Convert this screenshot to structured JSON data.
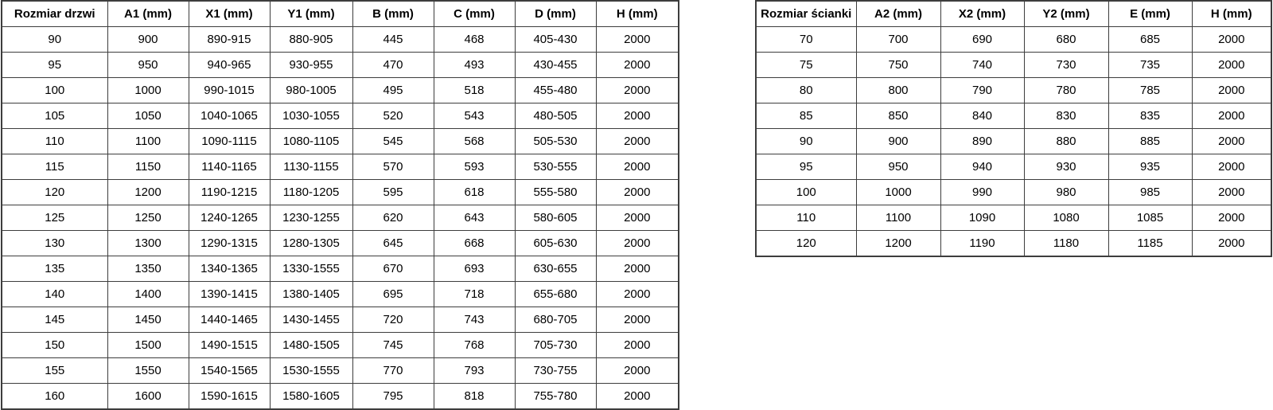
{
  "door_table": {
    "title": "Rozmiar drzwi table",
    "headers": [
      "Rozmiar drzwi",
      "A1 (mm)",
      "X1 (mm)",
      "Y1 (mm)",
      "B (mm)",
      "C (mm)",
      "D (mm)",
      "H (mm)"
    ],
    "rows": [
      [
        "90",
        "900",
        "890-915",
        "880-905",
        "445",
        "468",
        "405-430",
        "2000"
      ],
      [
        "95",
        "950",
        "940-965",
        "930-955",
        "470",
        "493",
        "430-455",
        "2000"
      ],
      [
        "100",
        "1000",
        "990-1015",
        "980-1005",
        "495",
        "518",
        "455-480",
        "2000"
      ],
      [
        "105",
        "1050",
        "1040-1065",
        "1030-1055",
        "520",
        "543",
        "480-505",
        "2000"
      ],
      [
        "110",
        "1100",
        "1090-1115",
        "1080-1105",
        "545",
        "568",
        "505-530",
        "2000"
      ],
      [
        "115",
        "1150",
        "1140-1165",
        "1130-1155",
        "570",
        "593",
        "530-555",
        "2000"
      ],
      [
        "120",
        "1200",
        "1190-1215",
        "1180-1205",
        "595",
        "618",
        "555-580",
        "2000"
      ],
      [
        "125",
        "1250",
        "1240-1265",
        "1230-1255",
        "620",
        "643",
        "580-605",
        "2000"
      ],
      [
        "130",
        "1300",
        "1290-1315",
        "1280-1305",
        "645",
        "668",
        "605-630",
        "2000"
      ],
      [
        "135",
        "1350",
        "1340-1365",
        "1330-1555",
        "670",
        "693",
        "630-655",
        "2000"
      ],
      [
        "140",
        "1400",
        "1390-1415",
        "1380-1405",
        "695",
        "718",
        "655-680",
        "2000"
      ],
      [
        "145",
        "1450",
        "1440-1465",
        "1430-1455",
        "720",
        "743",
        "680-705",
        "2000"
      ],
      [
        "150",
        "1500",
        "1490-1515",
        "1480-1505",
        "745",
        "768",
        "705-730",
        "2000"
      ],
      [
        "155",
        "1550",
        "1540-1565",
        "1530-1555",
        "770",
        "793",
        "730-755",
        "2000"
      ],
      [
        "160",
        "1600",
        "1590-1615",
        "1580-1605",
        "795",
        "818",
        "755-780",
        "2000"
      ]
    ]
  },
  "wall_table": {
    "title": "Rozmiar scianki table",
    "headers": [
      "Rozmiar ścianki",
      "A2 (mm)",
      "X2 (mm)",
      "Y2 (mm)",
      "E (mm)",
      "H (mm)"
    ],
    "rows": [
      [
        "70",
        "700",
        "690",
        "680",
        "685",
        "2000"
      ],
      [
        "75",
        "750",
        "740",
        "730",
        "735",
        "2000"
      ],
      [
        "80",
        "800",
        "790",
        "780",
        "785",
        "2000"
      ],
      [
        "85",
        "850",
        "840",
        "830",
        "835",
        "2000"
      ],
      [
        "90",
        "900",
        "890",
        "880",
        "885",
        "2000"
      ],
      [
        "95",
        "950",
        "940",
        "930",
        "935",
        "2000"
      ],
      [
        "100",
        "1000",
        "990",
        "980",
        "985",
        "2000"
      ],
      [
        "110",
        "1100",
        "1090",
        "1080",
        "1085",
        "2000"
      ],
      [
        "120",
        "1200",
        "1190",
        "1180",
        "1185",
        "2000"
      ]
    ]
  },
  "colors": {
    "border": "#3d3d3d",
    "text": "#000000",
    "background": "#ffffff"
  }
}
